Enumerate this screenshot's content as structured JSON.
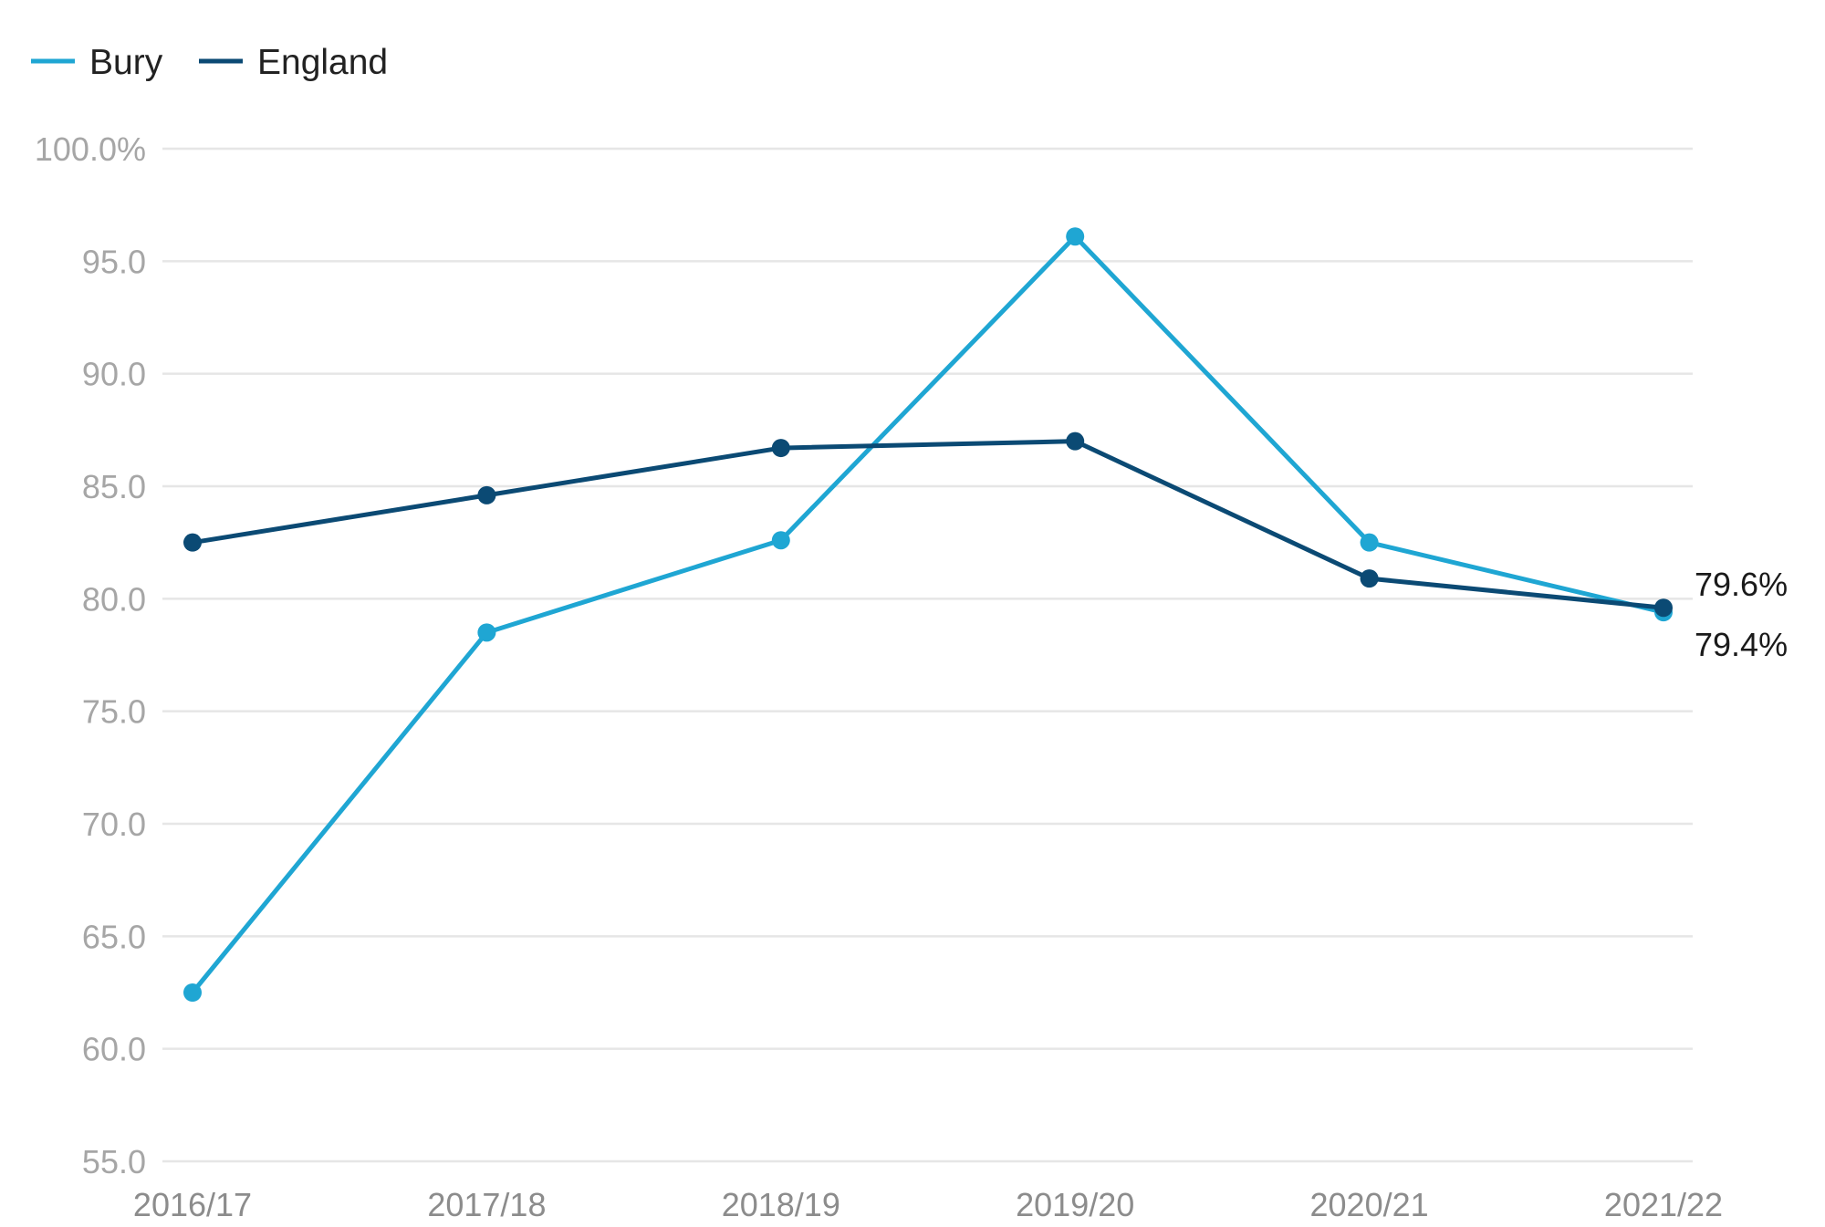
{
  "chart_data": {
    "type": "line",
    "title": "",
    "xlabel": "",
    "ylabel": "",
    "categories": [
      "2016/17",
      "2017/18",
      "2018/19",
      "2019/20",
      "2020/21",
      "2021/22"
    ],
    "series": [
      {
        "name": "Bury",
        "color": "#1fa6d3",
        "values": [
          62.5,
          78.5,
          82.6,
          96.1,
          82.5,
          79.4
        ]
      },
      {
        "name": "England",
        "color": "#0b4a74",
        "values": [
          82.5,
          84.6,
          86.7,
          87.0,
          80.9,
          79.6
        ]
      }
    ],
    "ylim": [
      55,
      100
    ],
    "yticks": [
      100,
      95,
      90,
      85,
      80,
      75,
      70,
      65,
      60,
      55
    ],
    "ytick_labels": [
      "100.0%",
      "95.0",
      "90.0",
      "85.0",
      "80.0",
      "75.0",
      "70.0",
      "65.0",
      "60.0",
      "55.0"
    ],
    "end_labels": {
      "England": "79.6%",
      "Bury": "79.4%"
    },
    "legend_position": "top-left",
    "grid": true
  }
}
